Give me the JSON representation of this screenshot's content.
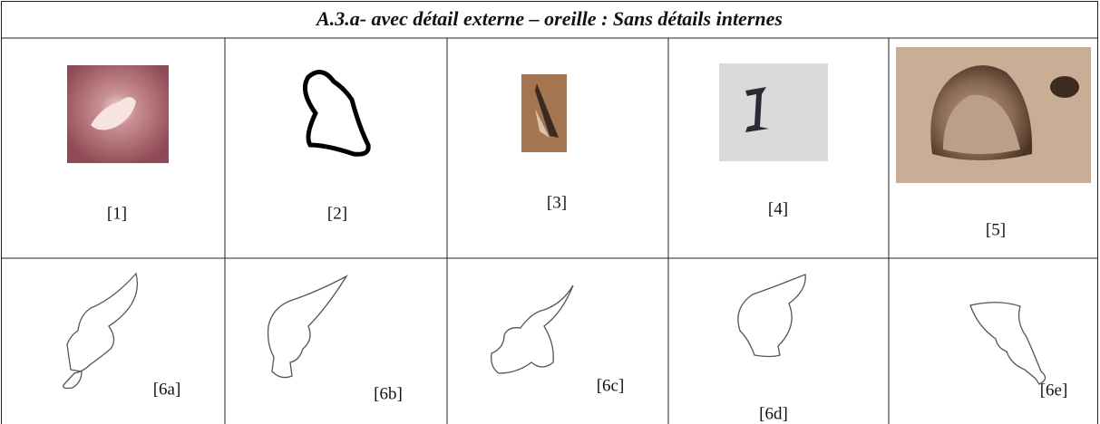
{
  "table": {
    "title": "A.3.a- avec détail externe – oreille : Sans détails internes",
    "rows": [
      [
        "[1]",
        "[2]",
        "[3]",
        "[4]",
        "[5]"
      ],
      [
        "[6a]",
        "[6b]",
        "[6c]",
        "[6d]",
        "[6e]"
      ]
    ]
  }
}
